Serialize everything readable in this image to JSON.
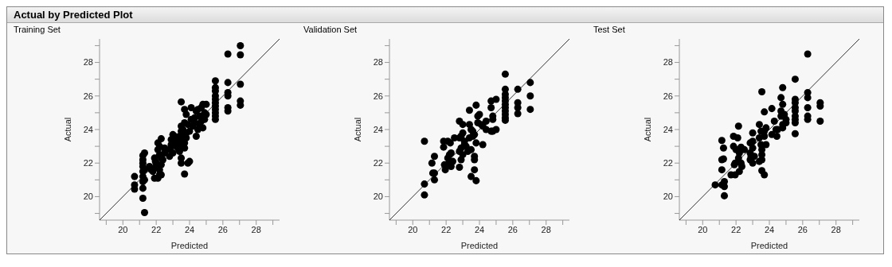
{
  "chart_data": [
    {
      "type": "scatter",
      "title": "Training Set",
      "xlabel": "Predicted",
      "ylabel": "Actual",
      "annotations": [
        "Actual by Predicted Plot"
      ],
      "grid": false,
      "legend": false,
      "xlim": [
        18.6,
        29.4
      ],
      "ylim": [
        18.6,
        29.4
      ],
      "xticks": [
        {
          "value": 19,
          "label": null
        },
        20,
        {
          "value": 21,
          "label": null
        },
        22,
        {
          "value": 23,
          "label": null
        },
        24,
        {
          "value": 25,
          "label": null
        },
        26,
        {
          "value": 27,
          "label": null
        },
        28,
        {
          "value": 29,
          "label": null
        }
      ],
      "yticks": [
        {
          "value": 19,
          "label": null
        },
        20,
        {
          "value": 21,
          "label": null
        },
        22,
        {
          "value": 23,
          "label": null
        },
        24,
        {
          "value": 25,
          "label": null
        },
        26,
        {
          "value": 27,
          "label": null
        },
        28,
        {
          "value": 29,
          "label": null
        }
      ],
      "series": [
        {
          "marker": "circle",
          "color": "#000000",
          "x": [
            20.7,
            20.7,
            20.7,
            21.2,
            21.3,
            21.2,
            21.2,
            21.2,
            21.3,
            21.2,
            21.2,
            21.3,
            21.2,
            21.2,
            21.2,
            21.3,
            21.6,
            21.7,
            21.8,
            21.9,
            21.9,
            21.95,
            22.1,
            22.2,
            22.3,
            22.0,
            22.1,
            22.2,
            22.3,
            22.5,
            22.2,
            22.3,
            22.1,
            22.4,
            22.5,
            22.0,
            22.3,
            22.2,
            22.8,
            22.8,
            22.9,
            22.9,
            23.0,
            23.0,
            23.1,
            23.1,
            22.9,
            23.2,
            23.3,
            23.3,
            23.4,
            23.4,
            23.5,
            23.5,
            23.5,
            23.5,
            23.5,
            23.4,
            23.6,
            23.6,
            23.7,
            23.7,
            23.7,
            23.7,
            23.8,
            23.8,
            23.9,
            23.9,
            23.6,
            23.8,
            23.7,
            24.0,
            24.0,
            24.1,
            24.1,
            24.2,
            24.3,
            24.4,
            24.4,
            24.5,
            24.5,
            24.3,
            24.6,
            24.7,
            24.7,
            24.8,
            24.8,
            24.9,
            24.9,
            25.0,
            25.0,
            24.6,
            25.55,
            25.55,
            25.55,
            25.55,
            25.55,
            25.55,
            25.55,
            25.55,
            25.55,
            25.55,
            25.55,
            26.3,
            26.3,
            26.3,
            26.3,
            26.3,
            26.3,
            27.05,
            27.05,
            27.05,
            27.05,
            27.05
          ],
          "values": [
            21.2,
            20.7,
            20.45,
            22.45,
            22.6,
            22.2,
            22.0,
            21.8,
            21.6,
            21.5,
            21.2,
            21.0,
            20.9,
            20.5,
            19.9,
            19.05,
            21.8,
            21.6,
            21.5,
            21.1,
            22.3,
            22.1,
            23.2,
            23.0,
            23.45,
            22.0,
            21.1,
            21.3,
            21.3,
            22.6,
            22.5,
            22.3,
            22.8,
            22.2,
            22.9,
            21.8,
            21.9,
            21.6,
            22.4,
            22.8,
            23.1,
            23.4,
            23.7,
            22.6,
            23.2,
            23.6,
            23.0,
            23.0,
            23.3,
            22.9,
            23.6,
            22.7,
            23.9,
            24.2,
            22.3,
            22.0,
            25.65,
            23.1,
            23.6,
            24.0,
            24.4,
            23.2,
            21.35,
            25.2,
            24.9,
            23.8,
            22.0,
            24.3,
            23.3,
            23.5,
            22.9,
            23.9,
            22.1,
            24.6,
            25.3,
            24.2,
            24.7,
            25.1,
            23.6,
            25.2,
            24.0,
            24.4,
            24.8,
            25.3,
            24.5,
            25.5,
            24.1,
            25.0,
            24.6,
            25.5,
            24.9,
            24.3,
            26.9,
            26.5,
            26.3,
            26.0,
            25.8,
            25.6,
            25.4,
            25.2,
            25.0,
            24.8,
            24.6,
            28.5,
            26.8,
            26.2,
            26.0,
            25.3,
            25.1,
            29.0,
            28.45,
            26.7,
            25.7,
            25.45
          ]
        },
        {
          "type": "line",
          "color": "#000000",
          "x": [
            18.6,
            29.4
          ],
          "values": [
            18.6,
            29.4
          ]
        }
      ]
    },
    {
      "type": "scatter",
      "title": "Validation Set",
      "xlabel": "Predicted",
      "ylabel": "Actual",
      "grid": false,
      "legend": false,
      "xlim": [
        18.6,
        29.4
      ],
      "ylim": [
        18.6,
        29.4
      ],
      "xticks": [
        {
          "value": 19,
          "label": null
        },
        20,
        {
          "value": 21,
          "label": null
        },
        22,
        {
          "value": 23,
          "label": null
        },
        24,
        {
          "value": 25,
          "label": null
        },
        26,
        {
          "value": 27,
          "label": null
        },
        28,
        {
          "value": 29,
          "label": null
        }
      ],
      "yticks": [
        {
          "value": 19,
          "label": null
        },
        20,
        {
          "value": 21,
          "label": null
        },
        22,
        {
          "value": 23,
          "label": null
        },
        24,
        {
          "value": 25,
          "label": null
        },
        26,
        {
          "value": 27,
          "label": null
        },
        28,
        {
          "value": 29,
          "label": null
        }
      ],
      "series": [
        {
          "marker": "circle",
          "color": "#000000",
          "x": [
            20.7,
            20.7,
            20.7,
            21.15,
            21.2,
            21.3,
            21.3,
            21.3,
            21.85,
            21.85,
            21.9,
            22.0,
            21.95,
            22.1,
            22.1,
            22.2,
            22.3,
            22.3,
            22.25,
            22.4,
            22.5,
            22.2,
            22.8,
            22.8,
            22.8,
            22.8,
            22.9,
            22.9,
            22.9,
            23.0,
            23.0,
            23.0,
            23.1,
            23.1,
            23.2,
            23.3,
            23.4,
            23.4,
            23.4,
            23.5,
            23.5,
            23.5,
            23.6,
            23.6,
            23.7,
            23.7,
            23.7,
            23.7,
            23.8,
            23.8,
            23.8,
            23.9,
            23.9,
            24.0,
            24.1,
            24.2,
            24.2,
            24.4,
            24.4,
            24.7,
            24.7,
            24.7,
            24.8,
            24.8,
            24.8,
            25.0,
            25.0,
            25.55,
            25.55,
            25.55,
            25.55,
            25.55,
            25.55,
            25.55,
            25.55,
            25.55,
            25.55,
            25.55,
            26.3,
            26.3,
            26.3,
            26.3,
            27.05,
            27.05,
            27.05
          ],
          "values": [
            23.3,
            20.75,
            20.1,
            22.0,
            21.4,
            21.4,
            22.4,
            21.0,
            23.3,
            22.95,
            21.9,
            21.9,
            21.6,
            23.3,
            22.3,
            22.5,
            22.6,
            21.8,
            23.2,
            22.1,
            23.5,
            22.1,
            24.5,
            23.5,
            22.7,
            21.75,
            23.6,
            22.2,
            22.9,
            23.8,
            24.3,
            22.5,
            23.3,
            23.1,
            23.0,
            22.7,
            25.15,
            24.3,
            23.5,
            24.0,
            21.2,
            22.8,
            23.6,
            23.9,
            21.6,
            22.2,
            23.7,
            22.4,
            20.95,
            25.45,
            23.2,
            24.8,
            24.4,
            24.9,
            24.3,
            23.1,
            24.2,
            24.5,
            24.0,
            25.7,
            25.3,
            23.9,
            24.8,
            24.6,
            23.9,
            25.8,
            24.0,
            27.3,
            26.4,
            26.1,
            25.9,
            25.7,
            25.5,
            25.3,
            25.1,
            24.9,
            24.7,
            24.55,
            26.4,
            25.6,
            25.3,
            24.95,
            26.8,
            26.0,
            25.2
          ]
        },
        {
          "type": "line",
          "color": "#000000",
          "x": [
            18.6,
            29.4
          ],
          "values": [
            18.6,
            29.4
          ]
        }
      ]
    },
    {
      "type": "scatter",
      "title": "Test Set",
      "xlabel": "Predicted",
      "ylabel": "Actual",
      "grid": false,
      "legend": false,
      "xlim": [
        18.6,
        29.4
      ],
      "ylim": [
        18.6,
        29.4
      ],
      "xticks": [
        {
          "value": 19,
          "label": null
        },
        20,
        {
          "value": 21,
          "label": null
        },
        22,
        {
          "value": 23,
          "label": null
        },
        24,
        {
          "value": 25,
          "label": null
        },
        26,
        {
          "value": 27,
          "label": null
        },
        28,
        {
          "value": 29,
          "label": null
        }
      ],
      "yticks": [
        {
          "value": 19,
          "label": null
        },
        20,
        {
          "value": 21,
          "label": null
        },
        22,
        {
          "value": 23,
          "label": null
        },
        24,
        {
          "value": 25,
          "label": null
        },
        26,
        {
          "value": 27,
          "label": null
        },
        28,
        {
          "value": 29,
          "label": null
        }
      ],
      "series": [
        {
          "marker": "circle",
          "color": "#000000",
          "x": [
            20.75,
            21.15,
            21.15,
            21.15,
            21.25,
            21.25,
            21.3,
            21.3,
            21.3,
            21.15,
            21.7,
            21.85,
            21.85,
            21.9,
            21.95,
            21.95,
            22.0,
            22.1,
            22.15,
            22.15,
            22.2,
            22.2,
            22.3,
            22.3,
            22.35,
            22.5,
            22.85,
            22.85,
            22.85,
            22.9,
            23.0,
            23.0,
            23.0,
            23.0,
            23.1,
            23.4,
            23.4,
            23.4,
            23.5,
            23.5,
            23.55,
            23.55,
            23.55,
            23.55,
            23.55,
            23.7,
            23.7,
            23.7,
            23.7,
            23.8,
            23.8,
            24.15,
            24.15,
            24.3,
            24.4,
            24.45,
            24.5,
            24.7,
            24.7,
            24.7,
            24.8,
            24.8,
            24.8,
            24.8,
            24.9,
            25.0,
            25.0,
            25.55,
            25.55,
            25.55,
            25.55,
            25.55,
            25.55,
            25.55,
            25.55,
            25.55,
            26.3,
            26.3,
            26.3,
            26.3,
            26.3,
            26.3,
            27.05,
            27.05,
            27.05
          ],
          "values": [
            20.7,
            23.35,
            22.2,
            21.6,
            22.9,
            22.25,
            20.9,
            20.6,
            20.05,
            20.7,
            21.3,
            23.6,
            23.0,
            21.9,
            22.0,
            21.3,
            22.8,
            23.5,
            24.2,
            22.3,
            22.6,
            21.5,
            22.95,
            22.0,
            21.8,
            22.8,
            23.2,
            22.6,
            22.2,
            22.4,
            23.8,
            23.3,
            22.0,
            22.9,
            22.4,
            24.3,
            23.5,
            22.1,
            23.9,
            23.1,
            22.8,
            22.5,
            22.2,
            26.25,
            21.55,
            25.05,
            21.3,
            23.9,
            23.6,
            24.1,
            23.1,
            25.25,
            23.7,
            24.5,
            24.0,
            23.6,
            24.0,
            25.9,
            25.1,
            24.8,
            26.5,
            25.5,
            24.3,
            24.1,
            24.9,
            24.6,
            24.4,
            27.0,
            25.8,
            25.6,
            25.3,
            25.1,
            24.8,
            24.6,
            24.4,
            23.75,
            28.5,
            26.2,
            25.9,
            25.3,
            24.8,
            24.6,
            25.6,
            25.4,
            24.5
          ]
        },
        {
          "type": "line",
          "color": "#000000",
          "x": [
            18.6,
            29.4
          ],
          "values": [
            18.6,
            29.4
          ]
        }
      ]
    }
  ]
}
